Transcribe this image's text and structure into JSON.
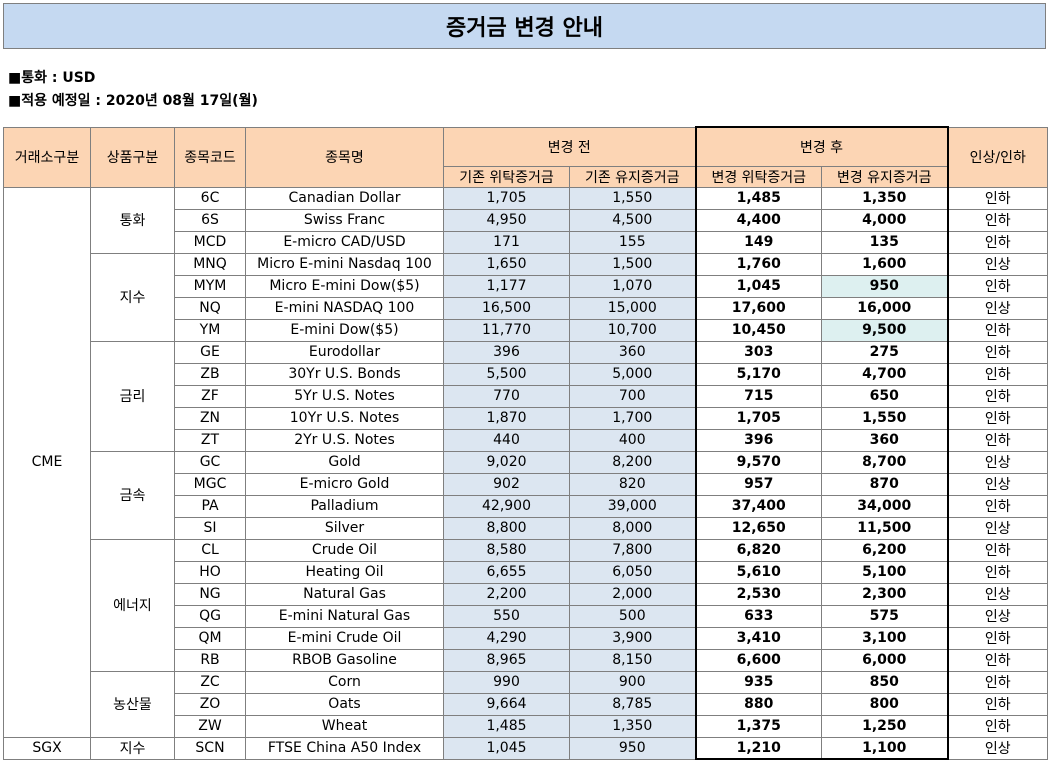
{
  "title": "증거금 변경 안내",
  "info": {
    "currency": "■통화 : USD",
    "effective_date": "■적용 예정일 : 2020년 08월 17일(월)"
  },
  "headers": {
    "exchange": "거래소구분",
    "category": "상품구분",
    "code": "종목코드",
    "name": "종목명",
    "before": "변경 전",
    "after": "변경 후",
    "change": "인상/인하",
    "before_initial": "기존 위탁증거금",
    "before_maint": "기존 유지증거금",
    "after_initial": "변경 위탁증거금",
    "after_maint": "변경 유지증거금"
  },
  "exchanges": [
    {
      "name": "CME",
      "categories": [
        {
          "name": "통화",
          "rows": [
            {
              "code": "6C",
              "name": "Canadian Dollar",
              "b_init": "1,705",
              "b_maint": "1,550",
              "a_init": "1,485",
              "a_maint": "1,350",
              "change": "인하"
            },
            {
              "code": "6S",
              "name": "Swiss Franc",
              "b_init": "4,950",
              "b_maint": "4,500",
              "a_init": "4,400",
              "a_maint": "4,000",
              "change": "인하"
            },
            {
              "code": "MCD",
              "name": "E-micro CAD/USD",
              "b_init": "171",
              "b_maint": "155",
              "a_init": "149",
              "a_maint": "135",
              "change": "인하"
            }
          ]
        },
        {
          "name": "지수",
          "rows": [
            {
              "code": "MNQ",
              "name": "Micro E-mini Nasdaq 100",
              "b_init": "1,650",
              "b_maint": "1,500",
              "a_init": "1,760",
              "a_maint": "1,600",
              "change": "인상"
            },
            {
              "code": "MYM",
              "name": "Micro E-mini Dow($5)",
              "b_init": "1,177",
              "b_maint": "1,070",
              "a_init": "1,045",
              "a_maint": "950",
              "change": "인하",
              "hl": true
            },
            {
              "code": "NQ",
              "name": "E-mini NASDAQ 100",
              "b_init": "16,500",
              "b_maint": "15,000",
              "a_init": "17,600",
              "a_maint": "16,000",
              "change": "인상"
            },
            {
              "code": "YM",
              "name": "E-mini Dow($5)",
              "b_init": "11,770",
              "b_maint": "10,700",
              "a_init": "10,450",
              "a_maint": "9,500",
              "change": "인하",
              "hl": true
            }
          ]
        },
        {
          "name": "금리",
          "rows": [
            {
              "code": "GE",
              "name": "Eurodollar",
              "b_init": "396",
              "b_maint": "360",
              "a_init": "303",
              "a_maint": "275",
              "change": "인하"
            },
            {
              "code": "ZB",
              "name": "30Yr U.S. Bonds",
              "b_init": "5,500",
              "b_maint": "5,000",
              "a_init": "5,170",
              "a_maint": "4,700",
              "change": "인하"
            },
            {
              "code": "ZF",
              "name": "5Yr U.S. Notes",
              "b_init": "770",
              "b_maint": "700",
              "a_init": "715",
              "a_maint": "650",
              "change": "인하"
            },
            {
              "code": "ZN",
              "name": "10Yr U.S. Notes",
              "b_init": "1,870",
              "b_maint": "1,700",
              "a_init": "1,705",
              "a_maint": "1,550",
              "change": "인하"
            },
            {
              "code": "ZT",
              "name": "2Yr U.S. Notes",
              "b_init": "440",
              "b_maint": "400",
              "a_init": "396",
              "a_maint": "360",
              "change": "인하"
            }
          ]
        },
        {
          "name": "금속",
          "rows": [
            {
              "code": "GC",
              "name": "Gold",
              "b_init": "9,020",
              "b_maint": "8,200",
              "a_init": "9,570",
              "a_maint": "8,700",
              "change": "인상"
            },
            {
              "code": "MGC",
              "name": "E-micro Gold",
              "b_init": "902",
              "b_maint": "820",
              "a_init": "957",
              "a_maint": "870",
              "change": "인상"
            },
            {
              "code": "PA",
              "name": "Palladium",
              "b_init": "42,900",
              "b_maint": "39,000",
              "a_init": "37,400",
              "a_maint": "34,000",
              "change": "인하"
            },
            {
              "code": "SI",
              "name": "Silver",
              "b_init": "8,800",
              "b_maint": "8,000",
              "a_init": "12,650",
              "a_maint": "11,500",
              "change": "인상"
            }
          ]
        },
        {
          "name": "에너지",
          "rows": [
            {
              "code": "CL",
              "name": "Crude Oil",
              "b_init": "8,580",
              "b_maint": "7,800",
              "a_init": "6,820",
              "a_maint": "6,200",
              "change": "인하"
            },
            {
              "code": "HO",
              "name": "Heating Oil",
              "b_init": "6,655",
              "b_maint": "6,050",
              "a_init": "5,610",
              "a_maint": "5,100",
              "change": "인하"
            },
            {
              "code": "NG",
              "name": "Natural Gas",
              "b_init": "2,200",
              "b_maint": "2,000",
              "a_init": "2,530",
              "a_maint": "2,300",
              "change": "인상"
            },
            {
              "code": "QG",
              "name": "E-mini Natural Gas",
              "b_init": "550",
              "b_maint": "500",
              "a_init": "633",
              "a_maint": "575",
              "change": "인상"
            },
            {
              "code": "QM",
              "name": "E-mini Crude Oil",
              "b_init": "4,290",
              "b_maint": "3,900",
              "a_init": "3,410",
              "a_maint": "3,100",
              "change": "인하"
            },
            {
              "code": "RB",
              "name": "RBOB Gasoline",
              "b_init": "8,965",
              "b_maint": "8,150",
              "a_init": "6,600",
              "a_maint": "6,000",
              "change": "인하"
            }
          ]
        },
        {
          "name": "농산물",
          "rows": [
            {
              "code": "ZC",
              "name": "Corn",
              "b_init": "990",
              "b_maint": "900",
              "a_init": "935",
              "a_maint": "850",
              "change": "인하"
            },
            {
              "code": "ZO",
              "name": "Oats",
              "b_init": "9,664",
              "b_maint": "8,785",
              "a_init": "880",
              "a_maint": "800",
              "change": "인하"
            },
            {
              "code": "ZW",
              "name": "Wheat",
              "b_init": "1,485",
              "b_maint": "1,350",
              "a_init": "1,375",
              "a_maint": "1,250",
              "change": "인하"
            }
          ]
        }
      ]
    },
    {
      "name": "SGX",
      "categories": [
        {
          "name": "지수",
          "rows": [
            {
              "code": "SCN",
              "name": "FTSE China A50 Index",
              "b_init": "1,045",
              "b_maint": "950",
              "a_init": "1,210",
              "a_maint": "1,100",
              "change": "인상"
            }
          ]
        }
      ]
    }
  ]
}
